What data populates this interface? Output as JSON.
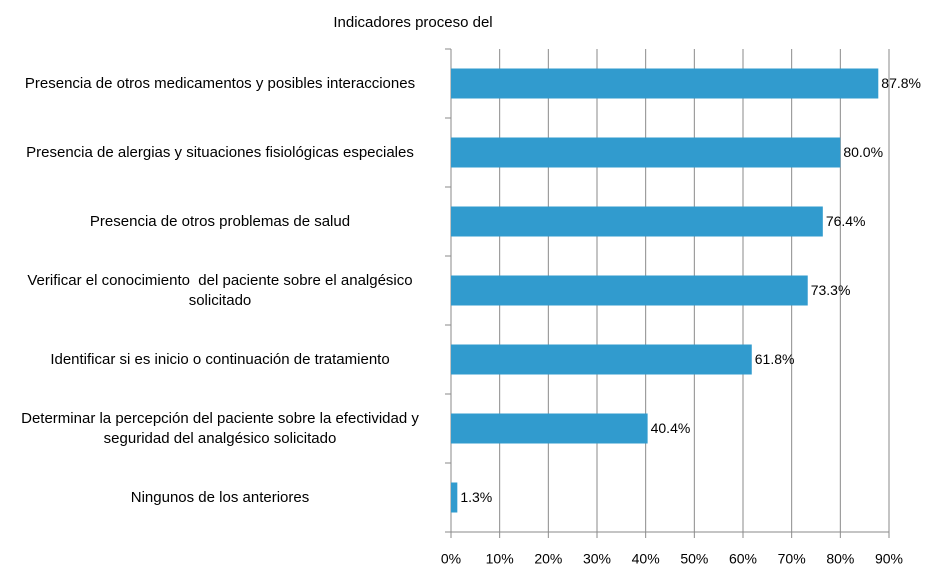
{
  "chart_data": {
    "type": "barh",
    "title": "Indicadores proceso del",
    "categories": [
      "Presencia de otros medicamentos y posibles interacciones",
      "Presencia de alergias y situaciones fisiológicas especiales",
      "Presencia de otros problemas de salud",
      "Verificar el conocimiento  del paciente sobre el analgésico solicitado",
      "Identificar si es inicio o continuación de tratamiento",
      "Determinar la percepción del paciente sobre la efectividad y seguridad del analgésico solicitado",
      "Ningunos de los anteriores"
    ],
    "values": [
      87.8,
      80.0,
      76.4,
      73.3,
      61.8,
      40.4,
      1.3
    ],
    "value_labels": [
      "87.8%",
      "80.0%",
      "76.4%",
      "73.3%",
      "61.8%",
      "40.4%",
      "1.3%"
    ],
    "color": "#319bce",
    "xlim": [
      0,
      90
    ],
    "xticks": [
      {
        "value": 0,
        "label": "0%"
      },
      {
        "value": 10,
        "label": "10%"
      },
      {
        "value": 20,
        "label": "20%"
      },
      {
        "value": 30,
        "label": "30%"
      },
      {
        "value": 40,
        "label": "40%"
      },
      {
        "value": 50,
        "label": "50%"
      },
      {
        "value": 60,
        "label": "60%"
      },
      {
        "value": 70,
        "label": "70%"
      },
      {
        "value": 80,
        "label": "80%"
      },
      {
        "value": 90,
        "label": "90%"
      }
    ],
    "grid": true
  }
}
